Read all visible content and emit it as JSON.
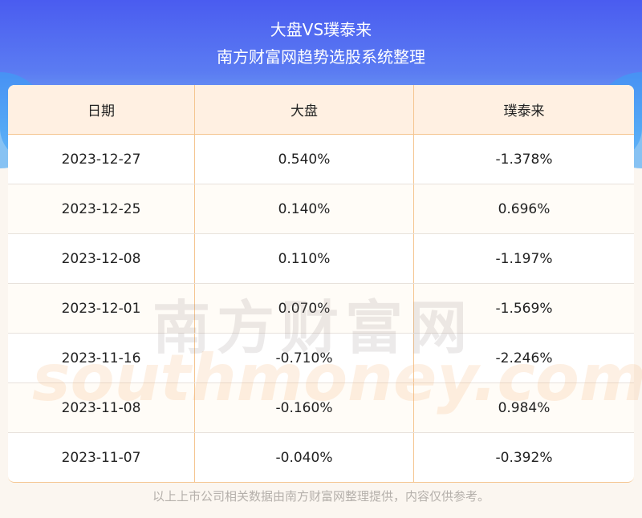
{
  "header": {
    "title": "大盘VS璞泰来",
    "subtitle": "南方财富网趋势选股系统整理"
  },
  "table": {
    "columns": [
      "日期",
      "大盘",
      "璞泰来"
    ],
    "rows": [
      [
        "2023-12-27",
        "0.540%",
        "-1.378%"
      ],
      [
        "2023-12-25",
        "0.140%",
        "0.696%"
      ],
      [
        "2023-12-08",
        "0.110%",
        "-1.197%"
      ],
      [
        "2023-12-01",
        "0.070%",
        "-1.569%"
      ],
      [
        "2023-11-16",
        "-0.710%",
        "-2.246%"
      ],
      [
        "2023-11-08",
        "-0.160%",
        "0.984%"
      ],
      [
        "2023-11-07",
        "-0.040%",
        "-0.392%"
      ]
    ]
  },
  "watermark": {
    "cn": "南方财富网",
    "en": "southmoney.com"
  },
  "footer": "以上上市公司相关数据由南方财富网整理提供，内容仅供参考。",
  "colors": {
    "header_bg": "#4a5cf0",
    "table_head_bg": "#fff0e2",
    "divider": "#f5c590"
  }
}
